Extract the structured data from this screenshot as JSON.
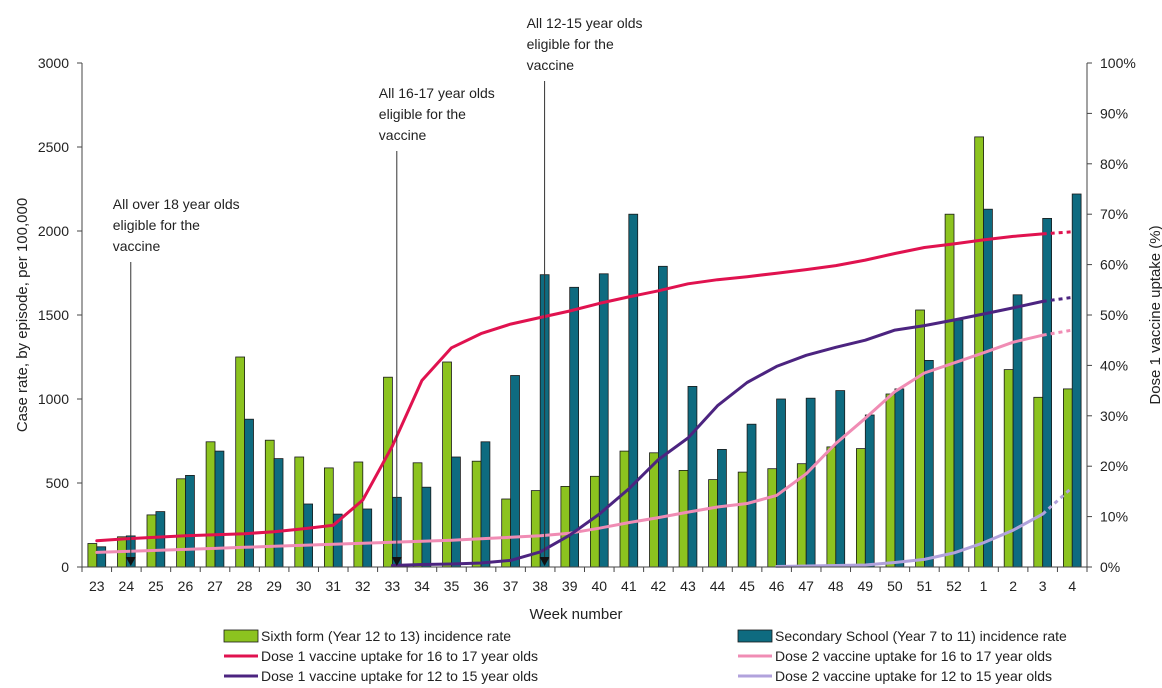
{
  "chart_data": {
    "type": "bar",
    "xlabel": "Week number",
    "ylabel": "Case rate, by episode, per 100,000",
    "y2label": "Dose 1 vaccine uptake (%)",
    "ylim": [
      0,
      3000
    ],
    "y2lim": [
      0,
      100
    ],
    "yticks": [
      "0",
      "500",
      "1000",
      "1500",
      "2000",
      "2500",
      "3000"
    ],
    "y2ticks": [
      "0%",
      "10%",
      "20%",
      "30%",
      "40%",
      "50%",
      "60%",
      "70%",
      "80%",
      "90%",
      "100%"
    ],
    "categories": [
      "23",
      "24",
      "25",
      "26",
      "27",
      "28",
      "29",
      "30",
      "31",
      "32",
      "33",
      "34",
      "35",
      "36",
      "37",
      "38",
      "39",
      "40",
      "41",
      "42",
      "43",
      "44",
      "45",
      "46",
      "47",
      "48",
      "49",
      "50",
      "51",
      "52",
      "1",
      "2",
      "3",
      "4"
    ],
    "bar_series": [
      {
        "name": "Sixth form (Year 12 to 13) incidence rate",
        "color": "#8cc31f",
        "values": [
          140,
          180,
          310,
          525,
          745,
          1250,
          755,
          655,
          590,
          625,
          1130,
          620,
          1220,
          630,
          405,
          455,
          480,
          540,
          690,
          680,
          575,
          520,
          565,
          585,
          615,
          715,
          705,
          1030,
          1530,
          2100,
          2560,
          1175,
          1010,
          1060
        ]
      },
      {
        "name": "Secondary School (Year 7 to 11) incidence rate",
        "color": "#0e6b80",
        "values": [
          120,
          185,
          330,
          545,
          690,
          880,
          645,
          375,
          315,
          345,
          415,
          475,
          655,
          745,
          1140,
          1740,
          1665,
          1745,
          2100,
          1790,
          1075,
          700,
          850,
          1000,
          1005,
          1050,
          905,
          1060,
          1230,
          1470,
          2130,
          1620,
          2075,
          2220
        ]
      }
    ],
    "line_series": [
      {
        "name": "Dose 1 vaccine uptake for 16 to 17 year olds",
        "color": "#e0124f",
        "values": [
          5.2,
          5.6,
          5.9,
          6.2,
          6.4,
          6.6,
          7.0,
          7.6,
          8.3,
          13.3,
          24.0,
          37.0,
          43.5,
          46.3,
          48.2,
          49.5,
          50.8,
          52.3,
          53.6,
          54.8,
          56.2,
          57.0,
          57.6,
          58.3,
          59.0,
          59.8,
          60.9,
          62.2,
          63.4,
          64.1,
          64.9,
          65.6,
          66.1,
          66.5
        ],
        "projected_from": 32
      },
      {
        "name": "Dose 2 vaccine uptake for 16 to 17 year olds",
        "color": "#f08cb4",
        "values": [
          2.9,
          3.1,
          3.3,
          3.5,
          3.7,
          3.9,
          4.1,
          4.3,
          4.5,
          4.7,
          4.9,
          5.1,
          5.3,
          5.6,
          5.9,
          6.2,
          6.7,
          7.7,
          8.8,
          9.8,
          10.9,
          11.9,
          12.6,
          14.2,
          18.5,
          24.5,
          29.5,
          34.8,
          38.5,
          40.5,
          42.5,
          44.6,
          46.0,
          47.0
        ],
        "projected_from": 32
      },
      {
        "name": "Dose 1 vaccine uptake for 12 to 15 year olds",
        "color": "#4c2480",
        "values": [
          null,
          null,
          null,
          null,
          null,
          null,
          null,
          null,
          null,
          null,
          0.3,
          0.5,
          0.6,
          0.8,
          1.3,
          3.0,
          6.3,
          10.5,
          15.5,
          21.3,
          25.6,
          32.0,
          36.6,
          39.8,
          42.0,
          43.6,
          45.0,
          47.0,
          47.9,
          49.0,
          50.2,
          51.4,
          52.7,
          53.5
        ],
        "projected_from": 32
      },
      {
        "name": "Dose 2 vaccine uptake for 12 to 15 year olds",
        "color": "#b1a2dc",
        "values": [
          null,
          null,
          null,
          null,
          null,
          null,
          null,
          null,
          null,
          null,
          null,
          null,
          null,
          null,
          null,
          null,
          null,
          null,
          null,
          null,
          null,
          null,
          null,
          0.1,
          0.2,
          0.3,
          0.4,
          0.9,
          1.5,
          2.8,
          4.8,
          7.3,
          10.5,
          15.8
        ],
        "projected_from": 32
      }
    ],
    "annotations": [
      {
        "text": [
          "All over 18 year olds",
          "eligible for the",
          "vaccine"
        ],
        "category": "24"
      },
      {
        "text": [
          "All 16-17 year olds",
          "eligible for the",
          "vaccine"
        ],
        "category": "33"
      },
      {
        "text": [
          "All 12-15 year olds",
          "eligible for the",
          "vaccine"
        ],
        "category": "38"
      }
    ],
    "legend": "bottom",
    "grid": false
  }
}
